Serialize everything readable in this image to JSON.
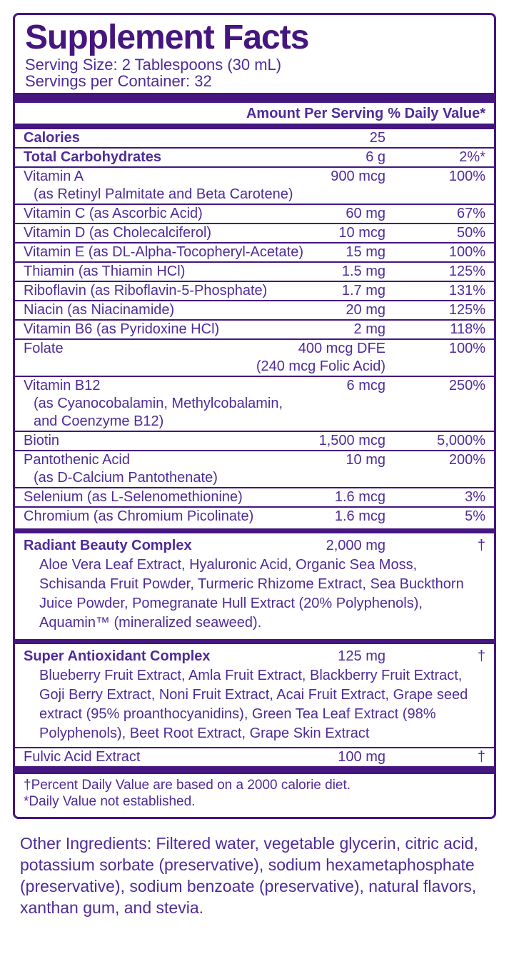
{
  "colors": {
    "text": "#4f2b99",
    "accent": "#451580",
    "background": "#ffffff"
  },
  "panel": {
    "title": "Supplement Facts",
    "serving_size": "Serving Size: 2 Tablespoons (30 mL)",
    "servings_per_container": "Servings per Container: 32",
    "header": {
      "amount_label": "Amount Per Serving",
      "dv_label": "% Daily Value*"
    },
    "rows": [
      {
        "name": "Calories",
        "amount": "25",
        "dv": "",
        "bold": true,
        "sep": "hair"
      },
      {
        "name": "Total Carbohydrates",
        "amount": "6 g",
        "dv": "2%*",
        "bold": true,
        "sep": "hair"
      },
      {
        "name": "Vitamin A",
        "amount": "900 mcg",
        "dv": "100%",
        "sep": "hair",
        "subs": [
          {
            "text": "(as Retinyl Palmitate and Beta Carotene)",
            "pos": "name"
          }
        ]
      },
      {
        "name": "Vitamin C (as Ascorbic Acid)",
        "amount": "60 mg",
        "dv": "67%",
        "sep": "hair"
      },
      {
        "name": "Vitamin D (as Cholecalciferol)",
        "amount": "10 mcg",
        "dv": "50%",
        "sep": "hair"
      },
      {
        "name": "Vitamin E (as DL-Alpha-Tocopheryl-Acetate)",
        "amount": "15 mg",
        "dv": "100%",
        "sep": "hair"
      },
      {
        "name": "Thiamin (as Thiamin HCl)",
        "amount": "1.5 mg",
        "dv": "125%",
        "sep": "hair"
      },
      {
        "name": "Riboflavin (as Riboflavin-5-Phosphate)",
        "amount": "1.7 mg",
        "dv": "131%",
        "sep": "hair"
      },
      {
        "name": "Niacin (as Niacinamide)",
        "amount": "20 mg",
        "dv": "125%",
        "sep": "hair"
      },
      {
        "name": "Vitamin B6 (as Pyridoxine HCl)",
        "amount": "2 mg",
        "dv": "118%",
        "sep": "hair"
      },
      {
        "name": "Folate",
        "amount": "400 mcg DFE",
        "dv": "100%",
        "sep": "hair",
        "subs": [
          {
            "text": "(240 mcg Folic Acid)",
            "pos": "amount"
          }
        ]
      },
      {
        "name": "Vitamin B12",
        "amount": "6 mcg",
        "dv": "250%",
        "sep": "hair",
        "subs": [
          {
            "text": "(as Cyanocobalamin, Methylcobalamin,",
            "pos": "name"
          },
          {
            "text": "and Coenzyme B12)",
            "pos": "name"
          }
        ]
      },
      {
        "name": "Biotin",
        "amount": "1,500 mcg",
        "dv": "5,000%",
        "sep": "hair"
      },
      {
        "name": "Pantothenic Acid",
        "amount": "10 mg",
        "dv": "200%",
        "sep": "hair",
        "subs": [
          {
            "text": "(as D-Calcium Pantothenate)",
            "pos": "name"
          }
        ]
      },
      {
        "name": "Selenium (as L-Selenomethionine)",
        "amount": "1.6 mcg",
        "dv": "3%",
        "sep": "hair"
      },
      {
        "name": "Chromium (as Chromium Picolinate)",
        "amount": "1.6 mcg",
        "dv": "5%",
        "sep": "bar"
      },
      {
        "name": "Radiant Beauty Complex",
        "amount": "2,000 mg",
        "dv": "†",
        "bold": true,
        "sep": "bar",
        "desc": "Aloe Vera Leaf Extract, Hyaluronic Acid, Organic Sea Moss, Schisanda Fruit Powder, Turmeric Rhizome Extract, Sea Buckthorn Juice Powder, Pomegranate Hull Extract (20% Polyphenols), Aquamin™ (mineralized seaweed)."
      },
      {
        "name": "Super Antioxidant Complex",
        "amount": "125 mg",
        "dv": "†",
        "bold": true,
        "sep": "hair",
        "desc": "Blueberry Fruit Extract, Amla Fruit Extract, Blackberry Fruit Extract, Goji Berry Extract, Noni Fruit Extract, Acai Fruit Extract, Grape seed extract (95% proanthocyanidins), Green Tea Leaf Extract (98% Polyphenols), Beet Root Extract, Grape Skin Extract"
      },
      {
        "name": "Fulvic Acid Extract",
        "amount": "100 mg",
        "dv": "†",
        "sep": "none"
      }
    ],
    "footnotes": [
      "†Percent Daily Value are based on a 2000 calorie diet.",
      "*Daily Value not established."
    ]
  },
  "other_ingredients": "Other Ingredients: Filtered water, vegetable glycerin, citric acid, potassium sorbate (preservative), sodium hexametaphosphate (preservative), sodium benzoate (preservative), natural flavors, xanthan gum, and stevia."
}
